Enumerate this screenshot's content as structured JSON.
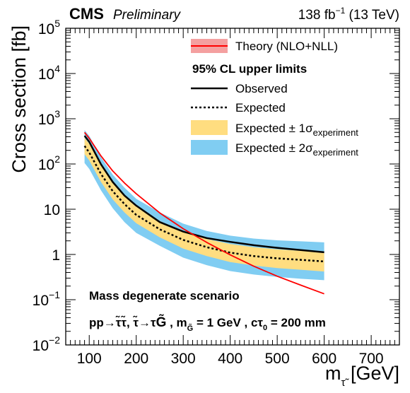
{
  "header": {
    "experiment": "CMS",
    "status": "Preliminary",
    "lumi_value": "138 fb",
    "lumi_exp": "−1",
    "energy": "(13 TeV)"
  },
  "chart_data": {
    "type": "line",
    "xlabel_main": "m",
    "xlabel_sub": "τ̃",
    "xlabel_unit": "[GeV]",
    "ylabel": "Cross section [fb]",
    "xlim": [
      50,
      760
    ],
    "ylim": [
      0.01,
      100000
    ],
    "yscale": "log",
    "legend_position": "top-right",
    "xticks": [
      100,
      200,
      300,
      400,
      500,
      600,
      700
    ],
    "xtick_labels": [
      "100",
      "200",
      "300",
      "400",
      "500",
      "600",
      "700"
    ],
    "yticks": [
      {
        "value": 0.01,
        "base": "10",
        "exp": "−2"
      },
      {
        "value": 0.1,
        "base": "10",
        "exp": "−1"
      },
      {
        "value": 1,
        "base": "1",
        "exp": ""
      },
      {
        "value": 10,
        "base": "10",
        "exp": ""
      },
      {
        "value": 100,
        "base": "10",
        "exp": "2"
      },
      {
        "value": 1000,
        "base": "10",
        "exp": "3"
      },
      {
        "value": 10000,
        "base": "10",
        "exp": "4"
      },
      {
        "value": 100000,
        "base": "10",
        "exp": "5"
      }
    ],
    "legend": {
      "theory": "Theory (NLO+NLL)",
      "header": "95% CL upper limits",
      "observed": "Observed",
      "expected": "Expected",
      "band1_main": "Expected ± 1σ",
      "band1_sub": "experiment",
      "band2_main": "Expected ± 2σ",
      "band2_sub": "experiment"
    },
    "annotations": {
      "scenario": "Mass degenerate scenario",
      "process_a": "pp→",
      "process_b": "τ̃τ̃",
      "process_c": ",  τ̃→τ",
      "process_d": "G̃",
      "process_e": " , m",
      "process_e_sub": "G̃",
      "process_f": " = 1 GeV , cτ",
      "process_f_sub": "0",
      "process_g": " = 200 mm"
    },
    "x": [
      90,
      100,
      125,
      150,
      175,
      200,
      250,
      300,
      350,
      400,
      450,
      500,
      550,
      600
    ],
    "series": [
      {
        "name": "Theory (NLO+NLL)",
        "color": "#ff0000",
        "values": [
          500,
          370,
          150,
          70,
          38,
          22,
          8.3,
          3.7,
          1.85,
          0.98,
          0.55,
          0.33,
          0.21,
          0.135
        ]
      },
      {
        "name": "Observed",
        "color": "#000000",
        "values": [
          420,
          310,
          98,
          40,
          20,
          12,
          5.2,
          3.2,
          2.3,
          1.9,
          1.6,
          1.4,
          1.25,
          1.12
        ]
      },
      {
        "name": "Expected",
        "color": "#000000",
        "values": [
          250,
          180,
          60,
          25,
          13,
          7.5,
          3.6,
          2.1,
          1.45,
          1.1,
          0.92,
          0.82,
          0.76,
          0.7
        ]
      }
    ],
    "bands": [
      {
        "name": "Expected ± 2σ",
        "color": "#80cdf2",
        "low": [
          105,
          78,
          26,
          10.5,
          5.2,
          3.0,
          1.55,
          0.85,
          0.58,
          0.43,
          0.36,
          0.32,
          0.29,
          0.27
        ],
        "high": [
          560,
          420,
          140,
          58,
          30,
          17,
          8.5,
          4.8,
          3.3,
          2.6,
          2.25,
          2.05,
          1.95,
          1.85
        ]
      },
      {
        "name": "Expected ± 1σ",
        "color": "#ffdd80",
        "low": [
          165,
          120,
          40,
          16.5,
          8.5,
          4.9,
          2.4,
          1.35,
          0.92,
          0.68,
          0.57,
          0.5,
          0.46,
          0.42
        ],
        "high": [
          380,
          280,
          92,
          38,
          19.5,
          11.5,
          5.5,
          3.2,
          2.2,
          1.7,
          1.45,
          1.3,
          1.2,
          1.12
        ]
      }
    ]
  }
}
